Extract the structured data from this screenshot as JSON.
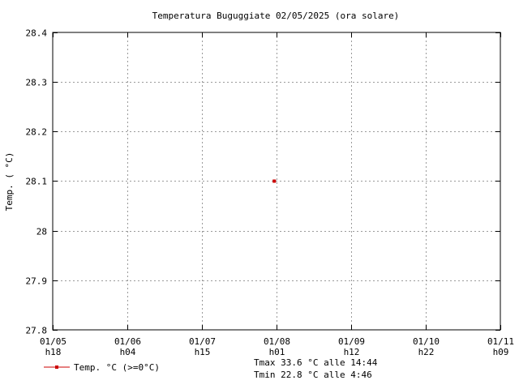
{
  "chart_data": {
    "type": "scatter",
    "title": "Temperatura Buguggiate 02/05/2025 (ora solare)",
    "ylabel": "Temp. ( °C)",
    "xlabel": "",
    "ylim": [
      27.8,
      28.4
    ],
    "yticks": [
      "27.8",
      "27.9",
      "28",
      "28.1",
      "28.2",
      "28.3",
      "28.4"
    ],
    "xticks": [
      {
        "date": "01/05",
        "hour": "h18"
      },
      {
        "date": "01/06",
        "hour": "h04"
      },
      {
        "date": "01/07",
        "hour": "h15"
      },
      {
        "date": "01/08",
        "hour": "h01"
      },
      {
        "date": "01/09",
        "hour": "h12"
      },
      {
        "date": "01/10",
        "hour": "h22"
      },
      {
        "date": "01/11",
        "hour": "h09"
      }
    ],
    "grid": true,
    "legend_position": "bottom-left",
    "series": [
      {
        "name": "Temp. °C (>=0°C)",
        "color": "#cc0000",
        "points": [
          {
            "x": 2.97,
            "y": 28.1
          }
        ]
      }
    ]
  },
  "stats": {
    "tmax": "Tmax 33.6 °C alle 14:44",
    "tmin": "Tmin 22.8 °C alle 4:46"
  }
}
